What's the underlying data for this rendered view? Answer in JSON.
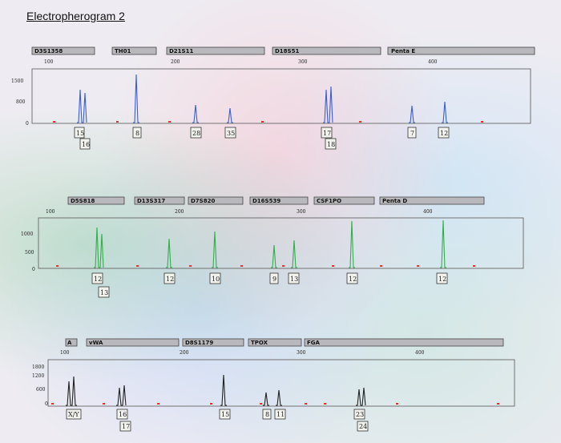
{
  "title": "Electropherogram 2",
  "panels": [
    {
      "id": "blue",
      "peak_color": "#3a5fd0",
      "loci": [
        "D3S1358",
        "TH01",
        "D21S11",
        "D18S51",
        "Penta E"
      ],
      "scale": [
        "100",
        "200",
        "300",
        "400"
      ],
      "yticks": [
        "1500",
        "800",
        "0"
      ],
      "alleles": [
        "15",
        "16",
        "8",
        "28",
        "35",
        "17",
        "18",
        "7",
        "12"
      ]
    },
    {
      "id": "green",
      "peak_color": "#2fb04a",
      "loci": [
        "D5S818",
        "D13S317",
        "D7S820",
        "D16S539",
        "CSF1PO",
        "Penta D"
      ],
      "scale": [
        "100",
        "200",
        "300",
        "400"
      ],
      "yticks": [
        "1000",
        "500",
        "0"
      ],
      "alleles": [
        "12",
        "13",
        "12",
        "10",
        "9",
        "13",
        "12",
        "12"
      ]
    },
    {
      "id": "black",
      "peak_color": "#222222",
      "loci": [
        "A",
        "vWA",
        "D8S1179",
        "TPOX",
        "FGA"
      ],
      "scale": [
        "100",
        "200",
        "300",
        "400"
      ],
      "yticks": [
        "1800",
        "1200",
        "600",
        "0"
      ],
      "alleles": [
        "X/Y",
        "16",
        "17",
        "15",
        "8",
        "11",
        "23",
        "24"
      ]
    }
  ]
}
